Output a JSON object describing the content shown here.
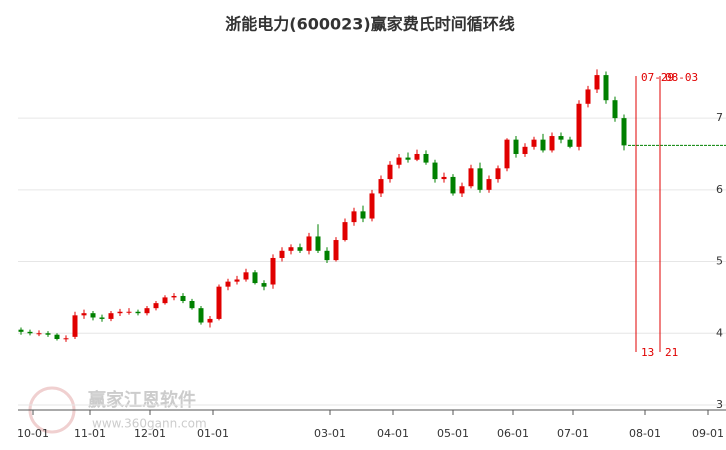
{
  "chart_data": {
    "type": "candlestick",
    "title": "浙能电力(600023)赢家费氏时间循环线",
    "watermark": [
      "赢家江恩软件",
      "www.360gann.com"
    ],
    "up_color": "#e00000",
    "down_color": "#008000",
    "xlim": [
      0,
      236
    ],
    "ylim": [
      2.93,
      7.95
    ],
    "xticks": [
      {
        "value": 5,
        "label": "10-01"
      },
      {
        "value": 24,
        "label": "11-01"
      },
      {
        "value": 44,
        "label": "12-01"
      },
      {
        "value": 65,
        "label": "01-01"
      },
      {
        "value": 104,
        "label": "03-01"
      },
      {
        "value": 125,
        "label": "04-01"
      },
      {
        "value": 145,
        "label": "05-01"
      },
      {
        "value": 165,
        "label": "06-01"
      },
      {
        "value": 185,
        "label": "07-01"
      },
      {
        "value": 209,
        "label": "08-01"
      },
      {
        "value": 230,
        "label": "09-01"
      }
    ],
    "yticks": [
      3,
      4,
      5,
      6,
      7
    ],
    "grid": true,
    "x": [
      1,
      4,
      7,
      10,
      13,
      16,
      19,
      22,
      25,
      28,
      31,
      34,
      37,
      40,
      43,
      46,
      49,
      52,
      55,
      58,
      61,
      64,
      67,
      70,
      73,
      76,
      79,
      82,
      85,
      88,
      91,
      94,
      97,
      100,
      103,
      106,
      109,
      112,
      115,
      118,
      121,
      124,
      127,
      130,
      133,
      136,
      139,
      142,
      145,
      148,
      151,
      154,
      157,
      160,
      163,
      166,
      169,
      172,
      175,
      178,
      181,
      184,
      187,
      190,
      193,
      196,
      199,
      202
    ],
    "open": [
      4.05,
      4.02,
      4.0,
      4.0,
      3.98,
      3.92,
      3.95,
      4.25,
      4.28,
      4.22,
      4.2,
      4.28,
      4.3,
      4.3,
      4.28,
      4.35,
      4.42,
      4.5,
      4.52,
      4.45,
      4.35,
      4.15,
      4.2,
      4.65,
      4.72,
      4.75,
      4.85,
      4.7,
      4.68,
      5.05,
      5.15,
      5.2,
      5.15,
      5.35,
      5.15,
      5.02,
      5.3,
      5.55,
      5.7,
      5.6,
      5.95,
      6.15,
      6.35,
      6.45,
      6.42,
      6.5,
      6.38,
      6.15,
      6.18,
      5.95,
      6.05,
      6.3,
      6.0,
      6.15,
      6.3,
      6.7,
      6.5,
      6.6,
      6.7,
      6.55,
      6.75,
      6.7,
      6.6,
      7.2,
      7.4,
      7.6,
      7.25,
      7.0
    ],
    "high": [
      4.08,
      4.05,
      4.04,
      4.03,
      4.0,
      3.97,
      4.3,
      4.33,
      4.31,
      4.26,
      4.31,
      4.34,
      4.35,
      4.33,
      4.38,
      4.45,
      4.53,
      4.56,
      4.56,
      4.48,
      4.38,
      4.24,
      4.68,
      4.76,
      4.8,
      4.9,
      4.88,
      4.74,
      5.1,
      5.2,
      5.24,
      5.25,
      5.4,
      5.52,
      5.2,
      5.34,
      5.6,
      5.75,
      5.78,
      6.0,
      6.2,
      6.4,
      6.5,
      6.52,
      6.56,
      6.55,
      6.42,
      6.24,
      6.22,
      6.1,
      6.35,
      6.38,
      6.2,
      6.34,
      6.72,
      6.75,
      6.65,
      6.74,
      6.78,
      6.8,
      6.8,
      6.74,
      7.25,
      7.45,
      7.68,
      7.65,
      7.3,
      7.05
    ],
    "low": [
      3.98,
      3.97,
      3.96,
      3.95,
      3.9,
      3.88,
      3.92,
      4.2,
      4.18,
      4.16,
      4.17,
      4.24,
      4.26,
      4.25,
      4.25,
      4.32,
      4.4,
      4.46,
      4.42,
      4.33,
      4.12,
      4.08,
      4.18,
      4.6,
      4.68,
      4.72,
      4.68,
      4.6,
      4.62,
      5.0,
      5.1,
      5.12,
      5.1,
      5.12,
      4.98,
      5.0,
      5.28,
      5.5,
      5.55,
      5.56,
      5.9,
      6.1,
      6.3,
      6.38,
      6.4,
      6.35,
      6.1,
      6.1,
      5.92,
      5.9,
      6.02,
      5.96,
      5.96,
      6.1,
      6.26,
      6.45,
      6.46,
      6.56,
      6.52,
      6.52,
      6.65,
      6.58,
      6.55,
      7.15,
      7.35,
      7.2,
      6.95,
      6.55
    ],
    "close": [
      4.02,
      4.0,
      4.0,
      3.98,
      3.92,
      3.93,
      4.25,
      4.28,
      4.22,
      4.2,
      4.28,
      4.3,
      4.3,
      4.28,
      4.35,
      4.42,
      4.5,
      4.52,
      4.45,
      4.35,
      4.15,
      4.2,
      4.65,
      4.72,
      4.75,
      4.85,
      4.7,
      4.65,
      5.05,
      5.15,
      5.2,
      5.15,
      5.35,
      5.15,
      5.02,
      5.3,
      5.55,
      5.7,
      5.6,
      5.95,
      6.15,
      6.35,
      6.45,
      6.42,
      6.5,
      6.38,
      6.15,
      6.18,
      5.95,
      6.05,
      6.3,
      6.0,
      6.15,
      6.3,
      6.7,
      6.5,
      6.6,
      6.7,
      6.55,
      6.75,
      6.7,
      6.6,
      7.2,
      7.4,
      7.6,
      7.25,
      7.0,
      6.62
    ],
    "cycle_lines": [
      {
        "x": 206,
        "date": "07-29",
        "count": "13"
      },
      {
        "x": 214,
        "date": "08-03",
        "count": "21"
      }
    ]
  }
}
